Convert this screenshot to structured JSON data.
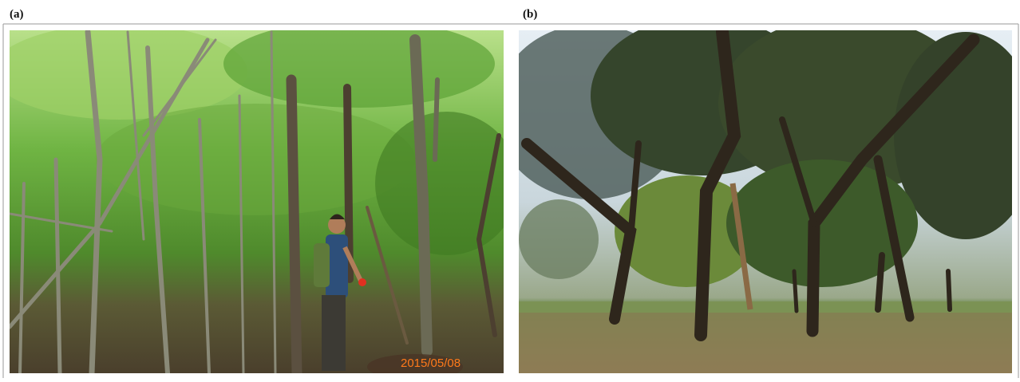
{
  "panels": [
    {
      "label": "(a)",
      "timestamp": "2015/05/08"
    },
    {
      "label": "(b)"
    }
  ]
}
